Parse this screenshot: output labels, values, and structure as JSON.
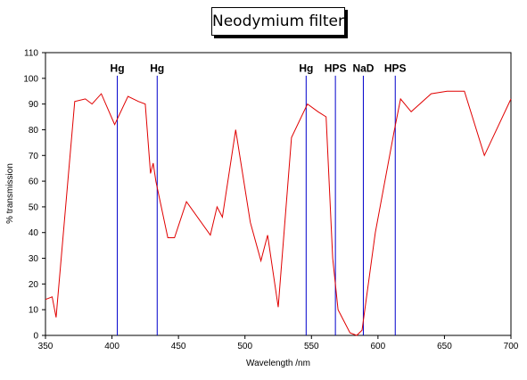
{
  "chart_data": {
    "type": "line",
    "title": "Neodymium filter",
    "xlabel": "Wavelength /nm",
    "ylabel": "% transmission",
    "xlim": [
      350,
      700
    ],
    "ylim": [
      0,
      110
    ],
    "xticks": [
      350,
      400,
      450,
      500,
      550,
      600,
      650,
      700
    ],
    "yticks": [
      0,
      10,
      20,
      30,
      40,
      50,
      60,
      70,
      80,
      90,
      100,
      110
    ],
    "grid": false,
    "series": [
      {
        "color": "#e00000",
        "x": [
          350,
          355,
          358,
          372,
          380,
          385,
          392,
          402,
          412,
          420,
          425,
          429,
          431,
          433,
          442,
          447,
          456,
          474,
          479,
          483,
          493,
          504,
          512,
          517,
          525,
          535,
          547,
          555,
          561,
          566,
          570,
          579,
          584,
          588,
          598,
          612,
          617,
          625,
          640,
          652,
          665,
          680,
          700
        ],
        "y": [
          14,
          15,
          7,
          91,
          92,
          90,
          94,
          82,
          93,
          91,
          90,
          63,
          67,
          60,
          38,
          38,
          52,
          39,
          50,
          46,
          80,
          44,
          29,
          39,
          11,
          77,
          90,
          87,
          85,
          30,
          10,
          1,
          0,
          2,
          40,
          79,
          92,
          87,
          94,
          95,
          95,
          70,
          92
        ]
      }
    ],
    "vlines": [
      {
        "x": 404,
        "label": "Hg"
      },
      {
        "x": 434,
        "label": "Hg"
      },
      {
        "x": 546,
        "label": "Hg"
      },
      {
        "x": 568,
        "label": "HPS"
      },
      {
        "x": 589,
        "label": "NaD"
      },
      {
        "x": 613,
        "label": "HPS"
      }
    ],
    "colors": {
      "series": "#e00000",
      "vline": "#0000cc",
      "axis": "#000000"
    }
  }
}
